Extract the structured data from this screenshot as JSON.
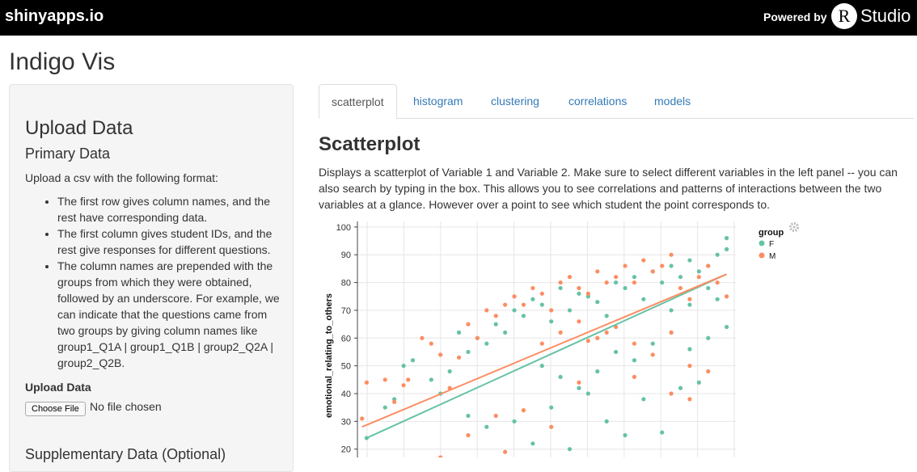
{
  "header": {
    "brand": "shinyapps.io",
    "powered_by": "Powered by",
    "rstudio_logo_letter": "R",
    "rstudio_text": "Studio"
  },
  "app": {
    "title": "Indigo Vis"
  },
  "sidebar": {
    "heading": "Upload Data",
    "subheading": "Primary Data",
    "intro": "Upload a csv with the following format:",
    "bullets": [
      "The first row gives column names, and the rest have corresponding data.",
      "The first column gives student IDs, and the rest give responses for different questions.",
      "The column names are prepended with the groups from which they were obtained, followed by an underscore. For example, we can indicate that the questions came from two groups by giving column names like group1_Q1A | group1_Q1B | group2_Q2A | group2_Q2B."
    ],
    "upload_label": "Upload Data",
    "choose_file_label": "Choose File",
    "no_file_text": "No file chosen",
    "supplementary_heading": "Supplementary Data (Optional)"
  },
  "tabs": [
    {
      "label": "scatterplot",
      "active": true
    },
    {
      "label": "histogram",
      "active": false
    },
    {
      "label": "clustering",
      "active": false
    },
    {
      "label": "correlations",
      "active": false
    },
    {
      "label": "models",
      "active": false
    }
  ],
  "main": {
    "heading": "Scatterplot",
    "description": "Displays a scatterplot of Variable 1 and Variable 2. Make sure to select different variables in the left panel -- you can also search by typing in the box. This allows you to see correlations and patterns of interactions between the two variables at a glance. However over a point to see which student the point corresponds to."
  },
  "chart_data": {
    "type": "scatter",
    "ylabel": "emotional_relating_to_others",
    "xlabel": "",
    "ylim": [
      17,
      102
    ],
    "y_ticks": [
      20,
      30,
      40,
      50,
      60,
      70,
      80,
      90,
      100
    ],
    "x_grid_count": 11,
    "grid": true,
    "legend_title": "group",
    "legend_position": "top-right",
    "settings_icon": "gear-icon",
    "series": [
      {
        "name": "F",
        "color": "#66c2a5",
        "points": [
          [
            1,
            24
          ],
          [
            3,
            35
          ],
          [
            4,
            38
          ],
          [
            5,
            50
          ],
          [
            6,
            52
          ],
          [
            8,
            45
          ],
          [
            9,
            40
          ],
          [
            10,
            48
          ],
          [
            11,
            62
          ],
          [
            12,
            55
          ],
          [
            13,
            60
          ],
          [
            14,
            58
          ],
          [
            15,
            65
          ],
          [
            16,
            62
          ],
          [
            17,
            70
          ],
          [
            18,
            68
          ],
          [
            19,
            74
          ],
          [
            20,
            72
          ],
          [
            21,
            66
          ],
          [
            22,
            78
          ],
          [
            23,
            70
          ],
          [
            24,
            76
          ],
          [
            25,
            75
          ],
          [
            26,
            73
          ],
          [
            27,
            68
          ],
          [
            28,
            80
          ],
          [
            29,
            78
          ],
          [
            30,
            82
          ],
          [
            31,
            74
          ],
          [
            32,
            84
          ],
          [
            33,
            80
          ],
          [
            34,
            86
          ],
          [
            35,
            82
          ],
          [
            36,
            88
          ],
          [
            37,
            84
          ],
          [
            38,
            86
          ],
          [
            39,
            90
          ],
          [
            40,
            92
          ],
          [
            20,
            50
          ],
          [
            22,
            46
          ],
          [
            24,
            42
          ],
          [
            26,
            48
          ],
          [
            28,
            55
          ],
          [
            30,
            52
          ],
          [
            32,
            58
          ],
          [
            34,
            62
          ],
          [
            36,
            56
          ],
          [
            38,
            60
          ],
          [
            40,
            64
          ],
          [
            21,
            35
          ],
          [
            25,
            40
          ],
          [
            27,
            30
          ],
          [
            31,
            38
          ],
          [
            33,
            26
          ],
          [
            35,
            42
          ],
          [
            37,
            44
          ],
          [
            12,
            32
          ],
          [
            14,
            28
          ],
          [
            17,
            30
          ],
          [
            19,
            22
          ],
          [
            23,
            20
          ],
          [
            29,
            25
          ],
          [
            40,
            96
          ],
          [
            39,
            74
          ],
          [
            38,
            78
          ],
          [
            36,
            72
          ],
          [
            34,
            70
          ]
        ],
        "trend": [
          [
            1,
            24
          ],
          [
            40,
            83
          ]
        ]
      },
      {
        "name": "M",
        "color": "#fc8d62",
        "points": [
          [
            0.5,
            31
          ],
          [
            1,
            44
          ],
          [
            3,
            45
          ],
          [
            4,
            37
          ],
          [
            5,
            43
          ],
          [
            5.5,
            45
          ],
          [
            7,
            60
          ],
          [
            8,
            58
          ],
          [
            9,
            54
          ],
          [
            10,
            42
          ],
          [
            11,
            53
          ],
          [
            12,
            65
          ],
          [
            13,
            60
          ],
          [
            14,
            70
          ],
          [
            15,
            68
          ],
          [
            16,
            72
          ],
          [
            17,
            75
          ],
          [
            18,
            72
          ],
          [
            19,
            78
          ],
          [
            20,
            76
          ],
          [
            21,
            70
          ],
          [
            22,
            80
          ],
          [
            23,
            82
          ],
          [
            24,
            78
          ],
          [
            25,
            76
          ],
          [
            26,
            84
          ],
          [
            27,
            80
          ],
          [
            28,
            82
          ],
          [
            29,
            86
          ],
          [
            30,
            80
          ],
          [
            31,
            88
          ],
          [
            32,
            84
          ],
          [
            33,
            86
          ],
          [
            34,
            90
          ],
          [
            35,
            78
          ],
          [
            36,
            74
          ],
          [
            37,
            82
          ],
          [
            38,
            86
          ],
          [
            39,
            80
          ],
          [
            40,
            75
          ],
          [
            20,
            58
          ],
          [
            22,
            62
          ],
          [
            24,
            66
          ],
          [
            26,
            60
          ],
          [
            28,
            64
          ],
          [
            30,
            58
          ],
          [
            32,
            54
          ],
          [
            34,
            62
          ],
          [
            36,
            50
          ],
          [
            38,
            48
          ],
          [
            9,
            17
          ],
          [
            12,
            25
          ],
          [
            15,
            32
          ],
          [
            18,
            34
          ],
          [
            21,
            28
          ],
          [
            24,
            44
          ],
          [
            30,
            46
          ],
          [
            34,
            40
          ],
          [
            36,
            38
          ],
          [
            16,
            19
          ],
          [
            25,
            59
          ],
          [
            27,
            62
          ]
        ],
        "trend": [
          [
            0.5,
            28
          ],
          [
            40,
            83
          ]
        ]
      }
    ]
  }
}
